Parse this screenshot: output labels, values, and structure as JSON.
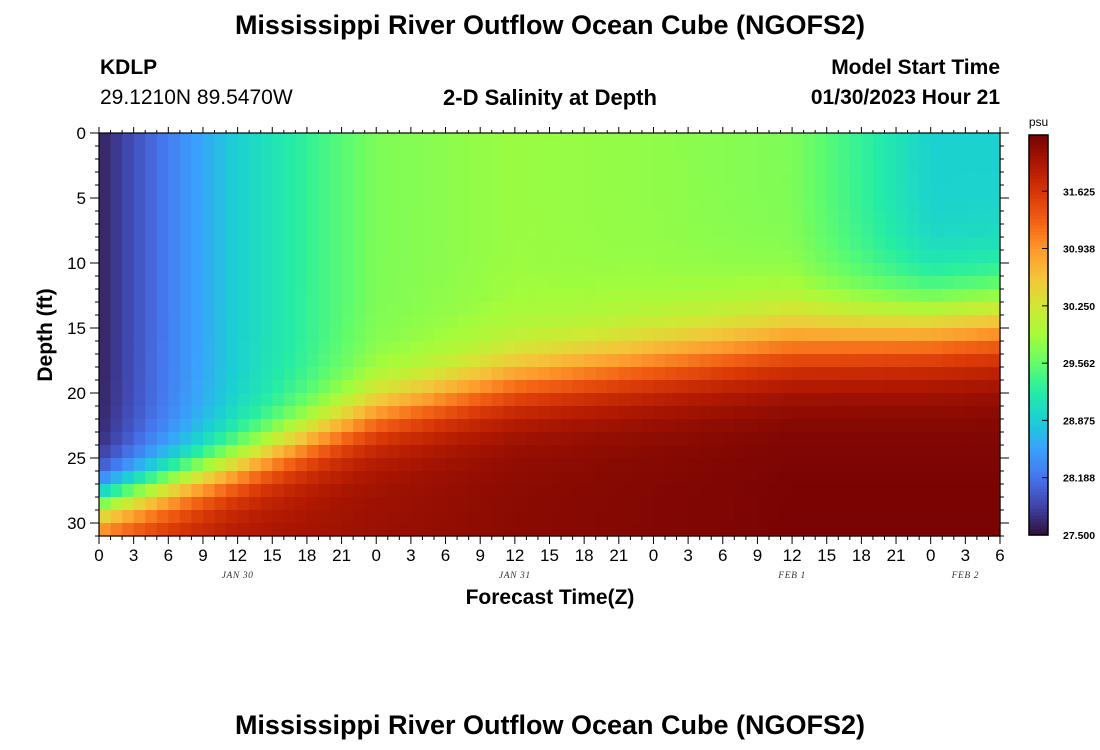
{
  "title_top": "Mississippi River Outflow Ocean Cube (NGOFS2)",
  "title_bottom": "Mississippi River Outflow Ocean Cube (NGOFS2)",
  "station": {
    "id": "KDLP",
    "coords": "29.1210N  89.5470W"
  },
  "subtitle": "2-D Salinity at Depth",
  "model_start": {
    "label": "Model Start Time",
    "value": "01/30/2023 Hour 21"
  },
  "colors": {
    "colormap": [
      "#30123b",
      "#4145ab",
      "#4675ed",
      "#39a2fc",
      "#1bcfd4",
      "#24eca6",
      "#61fc6c",
      "#a4fc3b",
      "#d1e834",
      "#f3c63a",
      "#fe9b2d",
      "#f36315",
      "#d93806",
      "#b11901",
      "#7a0403"
    ]
  },
  "chart_data": {
    "type": "heatmap",
    "xlabel": "Forecast Time(Z)",
    "ylabel": "Depth (ft)",
    "x_tick_labels": [
      "0",
      "3",
      "6",
      "9",
      "12",
      "15",
      "18",
      "21",
      "0",
      "3",
      "6",
      "9",
      "12",
      "15",
      "18",
      "21",
      "0",
      "3",
      "6",
      "9",
      "12",
      "15",
      "18",
      "21",
      "0",
      "3",
      "6"
    ],
    "x_range_hours": [
      0,
      78
    ],
    "date_labels": [
      {
        "label": "JAN 30",
        "hour": 12
      },
      {
        "label": "JAN 31",
        "hour": 36
      },
      {
        "label": "FEB 1",
        "hour": 60
      },
      {
        "label": "FEB 2",
        "hour": 75
      }
    ],
    "y_ticks": [
      0,
      5,
      10,
      15,
      20,
      25,
      30
    ],
    "y_range_ft": [
      0,
      31
    ],
    "colorbar": {
      "unit": "psu",
      "min": 27.5,
      "max": 32.3,
      "ticks": [
        "27.500",
        "28.188",
        "28.875",
        "29.562",
        "30.250",
        "30.938",
        "31.625"
      ]
    },
    "salinity_field": {
      "description_hours": [
        0,
        12,
        24,
        36,
        48,
        60,
        66,
        72,
        78
      ],
      "halocline_depth_ft": [
        28.5,
        25.5,
        21.5,
        19.0,
        17.5,
        16.0,
        15.5,
        15.0,
        14.5
      ],
      "surface_psu": [
        27.6,
        28.9,
        29.7,
        29.85,
        29.8,
        29.7,
        29.3,
        28.9,
        28.9
      ],
      "bottom_psu": [
        31.6,
        32.0,
        32.1,
        32.2,
        32.25,
        32.3,
        32.3,
        32.3,
        32.3
      ]
    }
  }
}
